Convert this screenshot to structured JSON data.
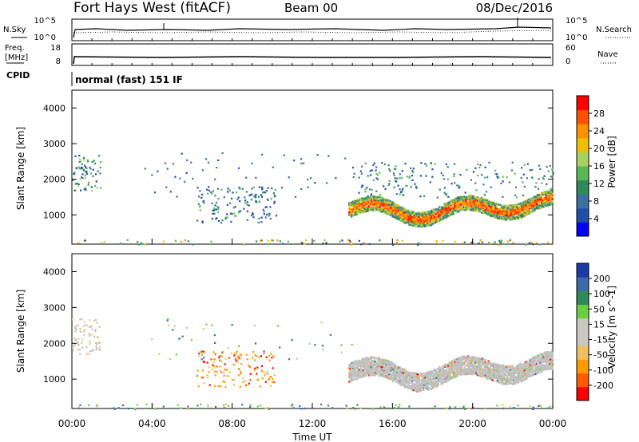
{
  "header": {
    "station": "Fort Hays West (fitACF)",
    "beam": "Beam 00",
    "date": "08/Dec/2016"
  },
  "noise_panel": {
    "left_label": "N.Sky",
    "left_ticks": [
      "10^5",
      "10^0"
    ],
    "right_label": "N.Search",
    "right_ticks": [
      "10^5",
      "10^0"
    ]
  },
  "freq_panel": {
    "left_label_line1": "Freq.",
    "left_label_line2": "[MHz]",
    "left_ticks": [
      "18",
      "8"
    ],
    "right_label": "Nave",
    "right_ticks": [
      "60",
      "0"
    ]
  },
  "cpid": {
    "label": "CPID",
    "text": "normal (fast) 151 IF"
  },
  "colors": {
    "power_scale": [
      "#0000ff",
      "#1f4fa8",
      "#3d6fa0",
      "#2f8a5a",
      "#58b858",
      "#a8d060",
      "#f0c000",
      "#ff9000",
      "#ff5000",
      "#ff0000"
    ],
    "velocity_scale": [
      "#ff0000",
      "#ff5a00",
      "#ff9a00",
      "#f0c060",
      "#c8c8c0",
      "#c8c8c0",
      "#6ad040",
      "#2e8a58",
      "#3a6aa8",
      "#1a3aa8"
    ],
    "ground_scatter": "#c0c0c0"
  },
  "chart_data": [
    {
      "type": "heatmap",
      "name": "power",
      "ylabel": "Slant Range [km]",
      "yticks": [
        1000,
        2000,
        3000,
        4000
      ],
      "ylim": [
        180,
        4500
      ],
      "xlim": [
        0,
        24
      ],
      "colorbar": {
        "label": "Power [dB]",
        "ticks": [
          "4",
          "8",
          "12",
          "16",
          "20",
          "24",
          "28"
        ],
        "range": [
          0,
          30
        ]
      },
      "features": [
        {
          "t_start": 0.0,
          "t_end": 1.4,
          "range_low": 1700,
          "range_high": 2700,
          "level": "medium"
        },
        {
          "t_start": 6.2,
          "t_end": 10.2,
          "range_low": 800,
          "range_high": 1800,
          "level": "low"
        },
        {
          "t_start": 13.6,
          "t_end": 24.0,
          "range_low": 900,
          "range_high": 1600,
          "level": "high"
        },
        {
          "t_start": 14.0,
          "t_end": 24.0,
          "range_low": 1500,
          "range_high": 2500,
          "level": "low"
        }
      ]
    },
    {
      "type": "heatmap",
      "name": "velocity",
      "ylabel": "Slant Range [km]",
      "xlabel": "Time UT",
      "xticks": [
        "00:00",
        "04:00",
        "08:00",
        "12:00",
        "16:00",
        "20:00",
        "00:00"
      ],
      "yticks": [
        1000,
        2000,
        3000,
        4000
      ],
      "ylim": [
        180,
        4500
      ],
      "xlim": [
        0,
        24
      ],
      "colorbar": {
        "label": "Velocity [m s^-1]",
        "ticks": [
          "200",
          "100",
          "50",
          "15",
          "-15",
          "-50",
          "-100",
          "-200"
        ]
      },
      "features": [
        {
          "t_start": 0.0,
          "t_end": 1.4,
          "range_low": 1700,
          "range_high": 2700,
          "velocity": "ground"
        },
        {
          "t_start": 6.2,
          "t_end": 10.2,
          "range_low": 800,
          "range_high": 1800,
          "velocity": -75
        },
        {
          "t_start": 14.0,
          "t_end": 24.0,
          "range_low": 900,
          "range_high": 2000,
          "velocity": "ground"
        }
      ]
    }
  ]
}
